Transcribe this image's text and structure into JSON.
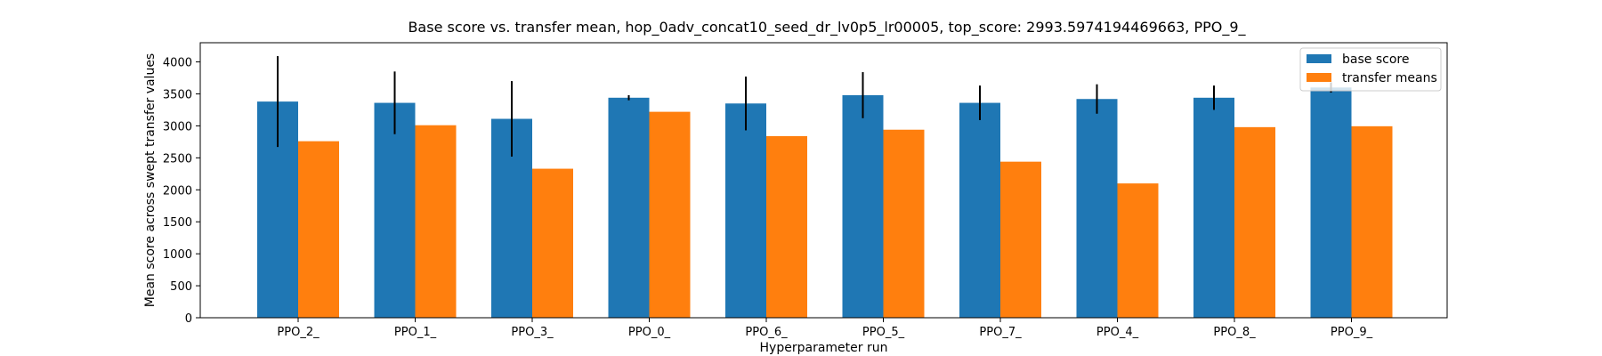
{
  "chart_data": {
    "type": "bar",
    "title": "Base score vs. transfer mean, hop_0adv_concat10_seed_dr_lv0p5_lr00005, top_score: 2993.5974194469663, PPO_9_",
    "xlabel": "Hyperparameter run",
    "ylabel": "Mean score across swept transfer values",
    "categories": [
      "PPO_2_",
      "PPO_1_",
      "PPO_3_",
      "PPO_0_",
      "PPO_6_",
      "PPO_5_",
      "PPO_7_",
      "PPO_4_",
      "PPO_8_",
      "PPO_9_"
    ],
    "ylim": [
      0,
      4300
    ],
    "yticks": [
      0,
      500,
      1000,
      1500,
      2000,
      2500,
      3000,
      3500,
      4000
    ],
    "grid": false,
    "legend_position": "upper right",
    "series": [
      {
        "name": "base score",
        "color": "#1f77b4",
        "values": [
          3380,
          3360,
          3110,
          3440,
          3350,
          3480,
          3360,
          3420,
          3440,
          3600
        ],
        "errors": [
          710,
          490,
          590,
          40,
          420,
          360,
          270,
          230,
          190,
          80
        ]
      },
      {
        "name": "transfer means",
        "color": "#ff7f0e",
        "values": [
          2760,
          3010,
          2330,
          3220,
          2840,
          2940,
          2440,
          2100,
          2980,
          2994
        ]
      }
    ]
  }
}
